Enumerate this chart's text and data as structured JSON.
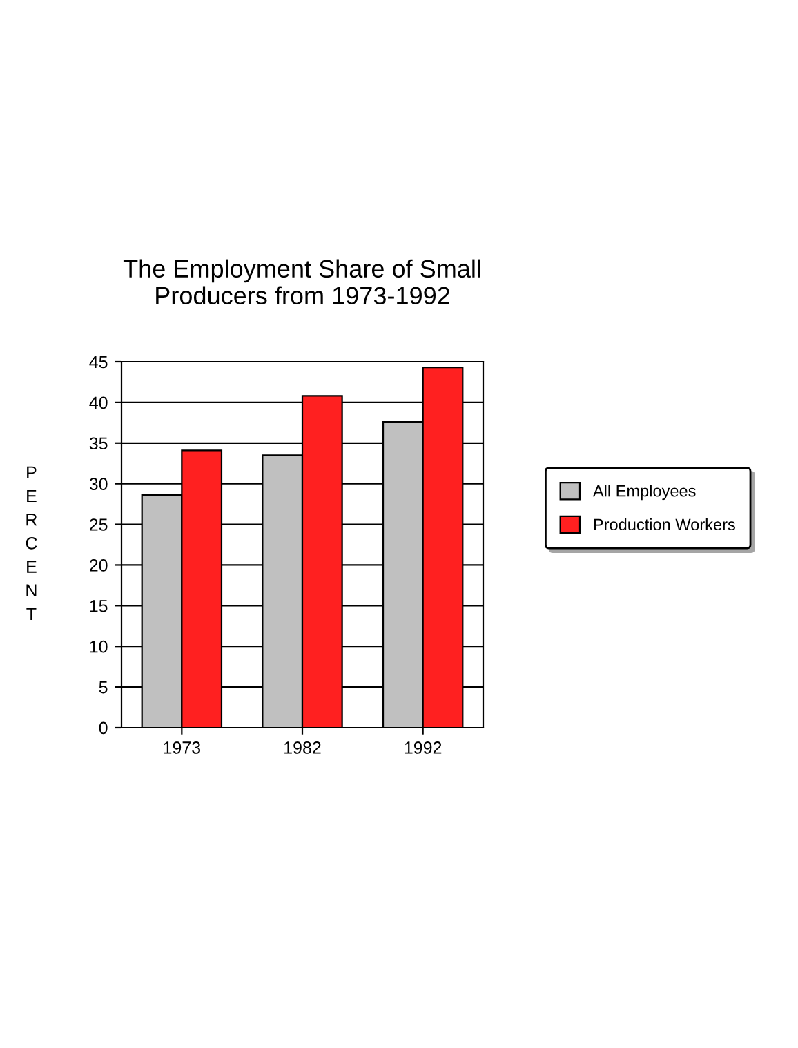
{
  "chart_data": {
    "type": "bar",
    "title": "The Employment Share of Small\nProducers from 1973-1992",
    "ylabel": "PERCENT",
    "categories": [
      "1973",
      "1982",
      "1992"
    ],
    "series": [
      {
        "name": "All Employees",
        "color": "#c0c0c0",
        "values": [
          28.6,
          33.5,
          37.6
        ]
      },
      {
        "name": "Production Workers",
        "color": "#ff2020",
        "values": [
          34.1,
          40.8,
          44.3
        ]
      }
    ],
    "ylim": [
      0,
      45
    ],
    "yticks": [
      0,
      5,
      10,
      15,
      20,
      25,
      30,
      35,
      40,
      45
    ],
    "grid": "y",
    "legend": "right"
  }
}
